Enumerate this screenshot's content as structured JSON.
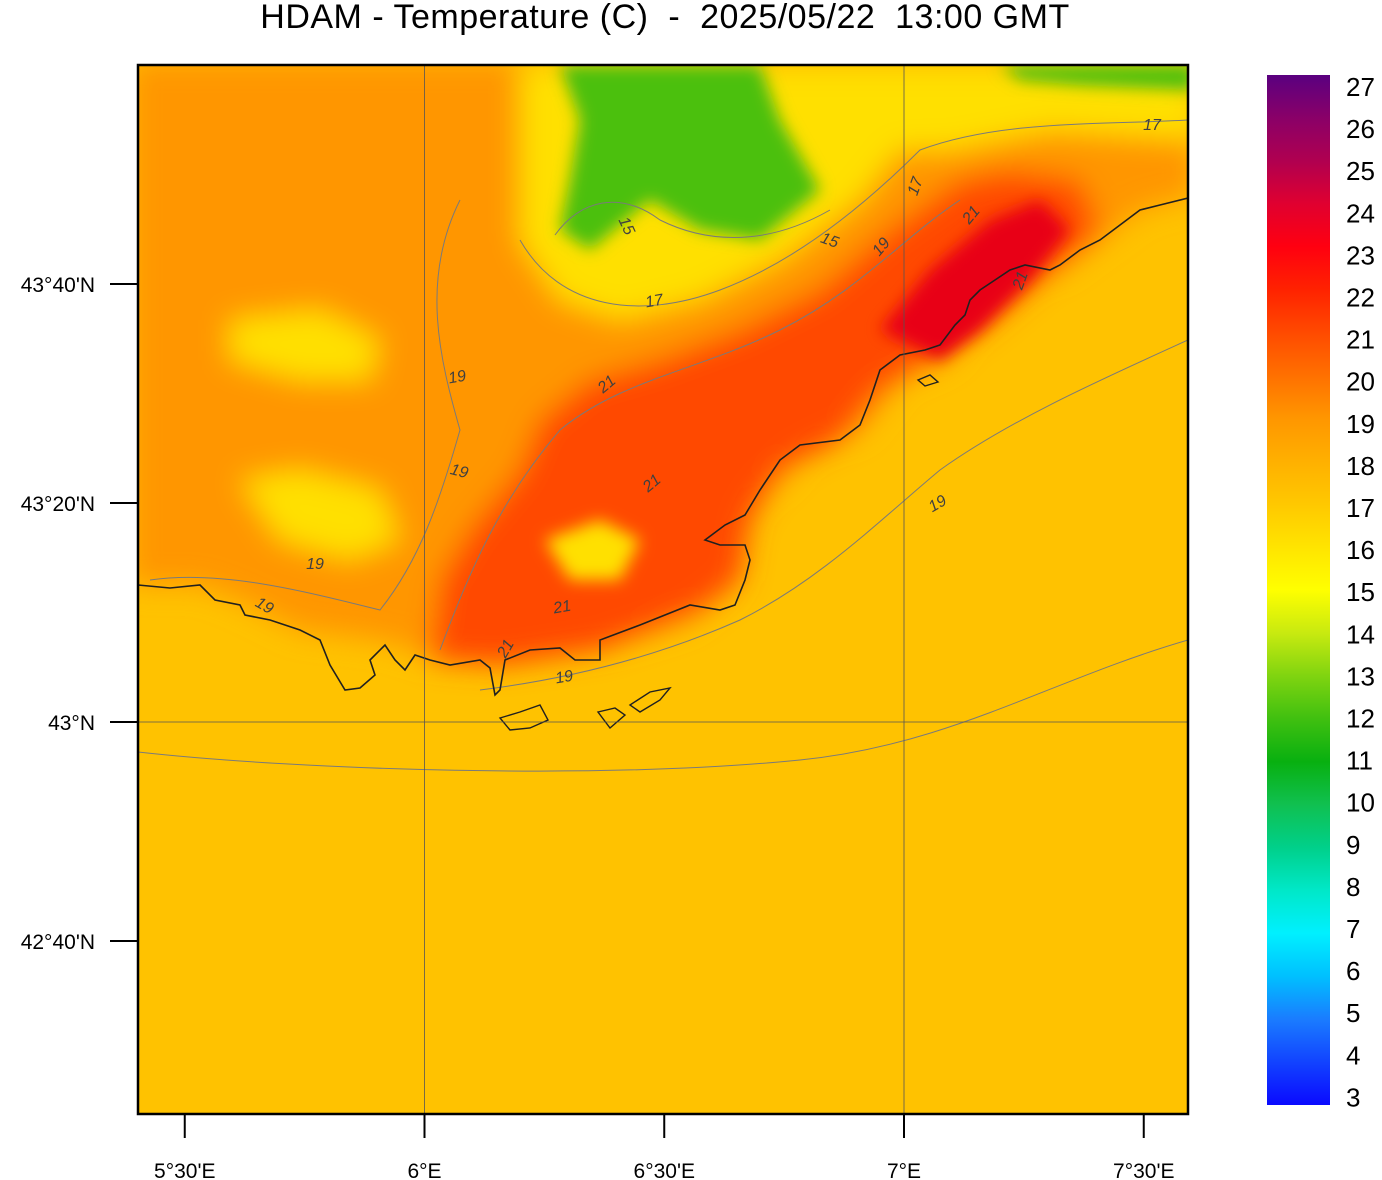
{
  "title": "HDAM - Temperature (C)  -  2025/05/22  13:00 GMT",
  "x_axis": {
    "ticks": [
      {
        "lon": 5.5,
        "label": "5°30'E"
      },
      {
        "lon": 6.0,
        "label": "6°E"
      },
      {
        "lon": 6.5,
        "label": "6°30'E"
      },
      {
        "lon": 7.0,
        "label": "7°E"
      },
      {
        "lon": 7.5,
        "label": "7°30'E"
      }
    ]
  },
  "y_axis": {
    "ticks": [
      {
        "lat": 43.6667,
        "label": "43°40'N"
      },
      {
        "lat": 43.3333,
        "label": "43°20'N"
      },
      {
        "lat": 43.0,
        "label": "43°N"
      },
      {
        "lat": 42.6667,
        "label": "42°40'N"
      }
    ]
  },
  "colorbar": {
    "labels": [
      "27",
      "26",
      "25",
      "24",
      "23",
      "22",
      "21",
      "20",
      "19",
      "18",
      "17",
      "16",
      "15",
      "14",
      "13",
      "12",
      "11",
      "10",
      "9",
      "8",
      "7",
      "6",
      "5",
      "4",
      "3"
    ],
    "stops": [
      {
        "v": 3,
        "c": "#0a0aff"
      },
      {
        "v": 5,
        "c": "#1a7cff"
      },
      {
        "v": 6,
        "c": "#00c0ff"
      },
      {
        "v": 7,
        "c": "#00f0ff"
      },
      {
        "v": 8,
        "c": "#00e8c8"
      },
      {
        "v": 9,
        "c": "#00d08a"
      },
      {
        "v": 10,
        "c": "#10c050"
      },
      {
        "v": 11,
        "c": "#08b010"
      },
      {
        "v": 12,
        "c": "#40c010"
      },
      {
        "v": 13,
        "c": "#80d410"
      },
      {
        "v": 14,
        "c": "#c8ea10"
      },
      {
        "v": 15,
        "c": "#ffff00"
      },
      {
        "v": 16,
        "c": "#ffe400"
      },
      {
        "v": 17,
        "c": "#ffc800"
      },
      {
        "v": 18,
        "c": "#ffb000"
      },
      {
        "v": 19,
        "c": "#ff9600"
      },
      {
        "v": 20,
        "c": "#ff7000"
      },
      {
        "v": 21,
        "c": "#ff4a00"
      },
      {
        "v": 22,
        "c": "#ff2200"
      },
      {
        "v": 23,
        "c": "#ff0010"
      },
      {
        "v": 24,
        "c": "#e00030"
      },
      {
        "v": 25,
        "c": "#b00050"
      },
      {
        "v": 26,
        "c": "#8a0068"
      },
      {
        "v": 27,
        "c": "#5a0080"
      }
    ]
  },
  "contour_labels": [
    "15",
    "15",
    "17",
    "17",
    "17",
    "19",
    "19",
    "19",
    "19",
    "19",
    "19",
    "19",
    "21",
    "21",
    "21",
    "21",
    "21",
    "21"
  ],
  "palette": {
    "sea": "#ffc200",
    "purple": "#6a0070",
    "red": "#e80018",
    "orange_red": "#ff4a00",
    "orange": "#ff9600",
    "yellow": "#ffe000",
    "green": "#4cc010",
    "coast": "#202020",
    "contour": "#7a7a7a"
  }
}
